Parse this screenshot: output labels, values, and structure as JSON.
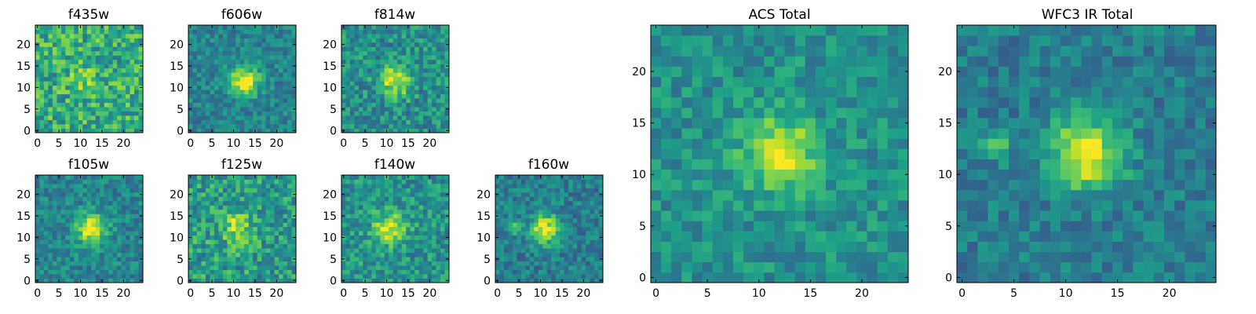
{
  "figure": {
    "colormap": "viridis",
    "background": "#ffffff",
    "frame_color": "#000000"
  },
  "chart_data": [
    {
      "id": "f435w",
      "type": "heatmap",
      "title": "f435w",
      "grid": [
        25,
        25
      ],
      "xlim": [
        0,
        25
      ],
      "ylim": [
        0,
        25
      ],
      "xticks": [
        0,
        5,
        10,
        15,
        20
      ],
      "yticks": [
        0,
        5,
        10,
        15,
        20
      ],
      "peak": {
        "x": 11,
        "y": 12
      },
      "signal": 0.15,
      "noise": 0.45,
      "background_level": 0.62,
      "noise_seed": 11
    },
    {
      "id": "f606w",
      "type": "heatmap",
      "title": "f606w",
      "grid": [
        25,
        25
      ],
      "xlim": [
        0,
        25
      ],
      "ylim": [
        0,
        25
      ],
      "xticks": [
        0,
        5,
        10,
        15,
        20
      ],
      "yticks": [
        0,
        5,
        10,
        15,
        20
      ],
      "peak": {
        "x": 12.5,
        "y": 11.5
      },
      "signal": 0.55,
      "noise": 0.28,
      "background_level": 0.45,
      "noise_seed": 22
    },
    {
      "id": "f814w",
      "type": "heatmap",
      "title": "f814w",
      "grid": [
        25,
        25
      ],
      "xlim": [
        0,
        25
      ],
      "ylim": [
        0,
        25
      ],
      "xticks": [
        0,
        5,
        10,
        15,
        20
      ],
      "yticks": [
        0,
        5,
        10,
        15,
        20
      ],
      "peak": {
        "x": 12,
        "y": 11.5
      },
      "signal": 0.45,
      "noise": 0.38,
      "background_level": 0.5,
      "noise_seed": 33
    },
    {
      "id": "f105w",
      "type": "heatmap",
      "title": "f105w",
      "grid": [
        25,
        25
      ],
      "xlim": [
        0,
        25
      ],
      "ylim": [
        0,
        25
      ],
      "xticks": [
        0,
        5,
        10,
        15,
        20
      ],
      "yticks": [
        0,
        5,
        10,
        15,
        20
      ],
      "peak": {
        "x": 12.5,
        "y": 12
      },
      "signal": 0.55,
      "noise": 0.3,
      "background_level": 0.45,
      "noise_seed": 44
    },
    {
      "id": "f125w",
      "type": "heatmap",
      "title": "f125w",
      "grid": [
        25,
        25
      ],
      "xlim": [
        0,
        25
      ],
      "ylim": [
        0,
        25
      ],
      "xticks": [
        0,
        5,
        10,
        15,
        20
      ],
      "yticks": [
        0,
        5,
        10,
        15,
        20
      ],
      "peak": {
        "x": 11,
        "y": 12.5
      },
      "signal": 0.35,
      "noise": 0.42,
      "background_level": 0.55,
      "noise_seed": 55
    },
    {
      "id": "f140w",
      "type": "heatmap",
      "title": "f140w",
      "grid": [
        25,
        25
      ],
      "xlim": [
        0,
        25
      ],
      "ylim": [
        0,
        25
      ],
      "xticks": [
        0,
        5,
        10,
        15,
        20
      ],
      "yticks": [
        0,
        5,
        10,
        15,
        20
      ],
      "peak": {
        "x": 10.5,
        "y": 12
      },
      "signal": 0.45,
      "noise": 0.36,
      "background_level": 0.52,
      "noise_seed": 66
    },
    {
      "id": "f160w",
      "type": "heatmap",
      "title": "f160w",
      "grid": [
        25,
        25
      ],
      "xlim": [
        0,
        25
      ],
      "ylim": [
        0,
        25
      ],
      "xticks": [
        0,
        5,
        10,
        15,
        20
      ],
      "yticks": [
        0,
        5,
        10,
        15,
        20
      ],
      "peak": {
        "x": 11,
        "y": 12
      },
      "signal": 0.55,
      "noise": 0.3,
      "background_level": 0.42,
      "noise_seed": 77,
      "secondary_peak": {
        "x": 3.5,
        "y": 12.5,
        "signal": 0.35
      }
    },
    {
      "id": "acs_total",
      "type": "heatmap",
      "title": "ACS Total",
      "grid": [
        25,
        25
      ],
      "xlim": [
        0,
        25
      ],
      "ylim": [
        0,
        25
      ],
      "xticks": [
        0,
        5,
        10,
        15,
        20
      ],
      "yticks": [
        0,
        5,
        10,
        15,
        20
      ],
      "peak": {
        "x": 12,
        "y": 12
      },
      "signal": 0.48,
      "noise": 0.28,
      "background_level": 0.5,
      "noise_seed": 88
    },
    {
      "id": "wfc3_ir_total",
      "type": "heatmap",
      "title": "WFC3 IR Total",
      "grid": [
        25,
        25
      ],
      "xlim": [
        0,
        25
      ],
      "ylim": [
        0,
        25
      ],
      "xticks": [
        0,
        5,
        10,
        15,
        20
      ],
      "yticks": [
        0,
        5,
        10,
        15,
        20
      ],
      "peak": {
        "x": 12,
        "y": 12
      },
      "signal": 0.6,
      "noise": 0.26,
      "background_level": 0.42,
      "noise_seed": 99,
      "secondary_peak": {
        "x": 3.5,
        "y": 13,
        "signal": 0.32
      }
    }
  ]
}
